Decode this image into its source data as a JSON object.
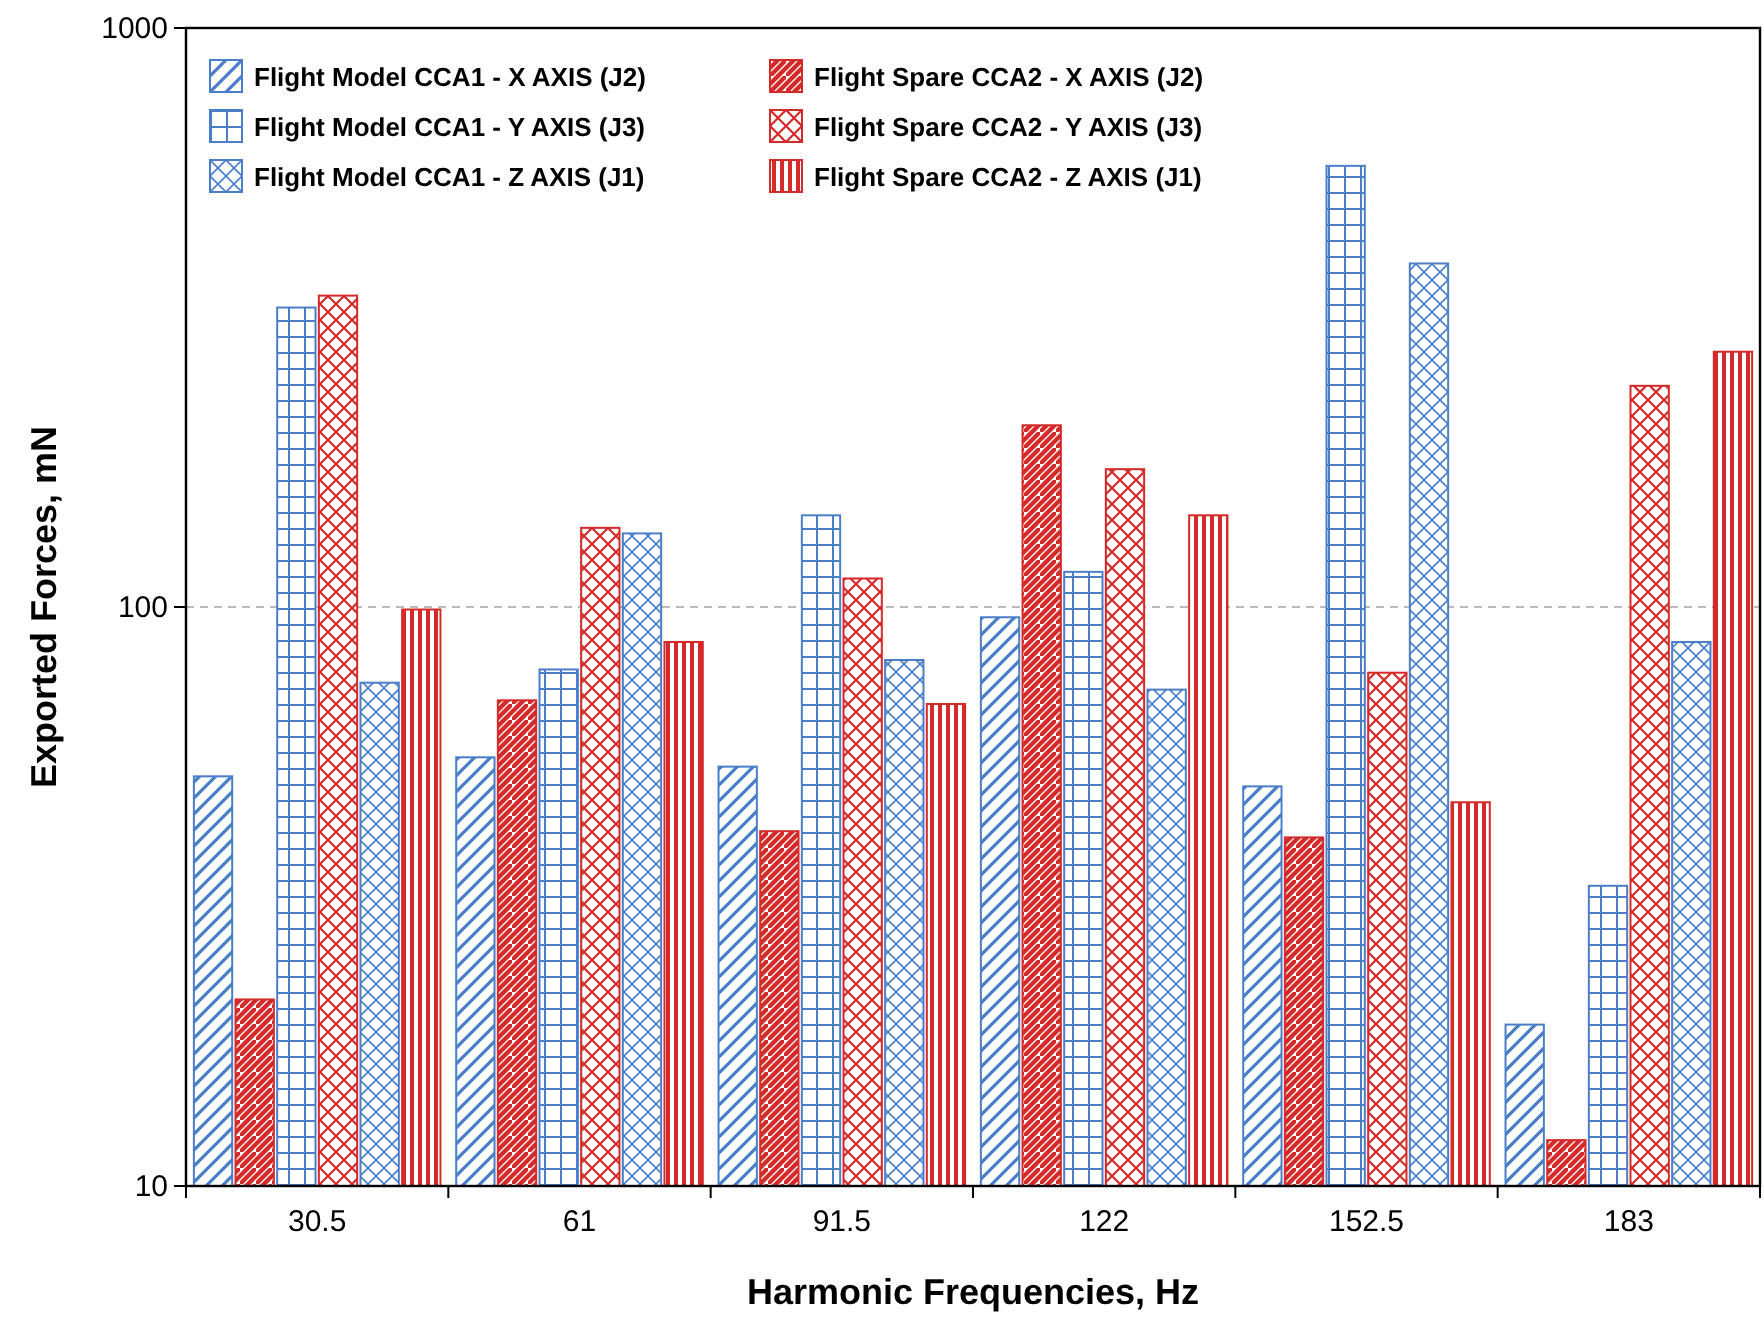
{
  "chart_data": {
    "type": "bar",
    "xlabel": "Harmonic Frequencies, Hz",
    "ylabel": "Exported Forces, mN",
    "categories": [
      "30.5",
      "61",
      "91.5",
      "122",
      "152.5",
      "183"
    ],
    "series": [
      {
        "name": "Flight Model CCA1 - X AXIS (J2)",
        "color": "#4a7ec8",
        "values": [
          51,
          55,
          53,
          96,
          49,
          19
        ]
      },
      {
        "name": "Flight Spare CCA2 - X AXIS (J2)",
        "color": "#d42a2a",
        "values": [
          21,
          69,
          41,
          206,
          40,
          12
        ]
      },
      {
        "name": "Flight Model CCA1 - Y AXIS (J3)",
        "color": "#4a7ec8",
        "values": [
          329,
          78,
          144,
          115,
          578,
          33
        ]
      },
      {
        "name": "Flight Spare CCA2 - Y AXIS (J3)",
        "color": "#d42a2a",
        "values": [
          345,
          137,
          112,
          173,
          77,
          241
        ]
      },
      {
        "name": "Flight Model CCA1 - Z AXIS (J1)",
        "color": "#4a7ec8",
        "values": [
          74,
          134,
          81,
          72,
          392,
          87
        ]
      },
      {
        "name": "Flight Spare CCA2 - Z AXIS (J1)",
        "color": "#d42a2a",
        "values": [
          99,
          87,
          68,
          144,
          46,
          276
        ]
      }
    ],
    "log": true,
    "ylim": [
      10,
      1000
    ],
    "yticks": [
      10,
      100,
      1000
    ],
    "grid": "y",
    "legend": "top left"
  }
}
